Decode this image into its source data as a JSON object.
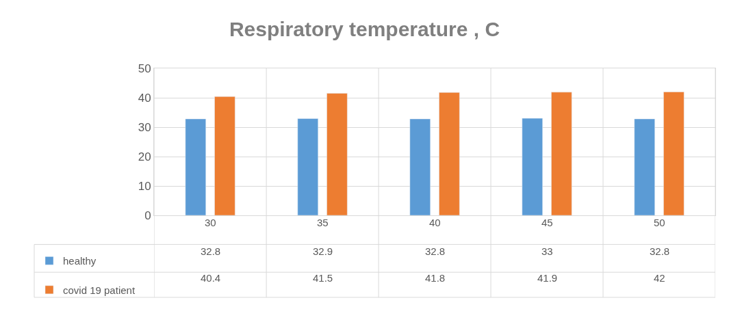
{
  "chart_data": {
    "type": "bar",
    "title": "Respiratory temperature , C",
    "categories": [
      "30",
      "35",
      "40",
      "45",
      "50"
    ],
    "series": [
      {
        "name": "healthy",
        "color": "#5b9bd5",
        "values": [
          32.8,
          32.9,
          32.8,
          33,
          32.8
        ]
      },
      {
        "name": "covid 19 patient",
        "color": "#ed7d31",
        "values": [
          40.4,
          41.5,
          41.8,
          41.9,
          42
        ]
      }
    ],
    "ylim": [
      0,
      50
    ],
    "yticks": [
      0,
      10,
      20,
      30,
      40,
      50
    ],
    "grid": "y",
    "data_labels": true,
    "legend": "bottom left"
  }
}
